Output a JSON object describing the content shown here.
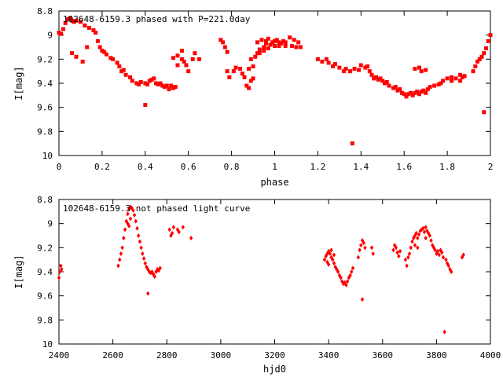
{
  "chart_data": [
    {
      "type": "scatter",
      "title": "102648-6159.3 phased with P=221.0day",
      "xlabel": "phase",
      "ylabel": "I[mag]",
      "xlim": [
        0,
        2
      ],
      "ylim": [
        8.8,
        10
      ],
      "y_inverted": true,
      "xticks": [
        0,
        0.2,
        0.4,
        0.6,
        0.8,
        1,
        1.2,
        1.4,
        1.6,
        1.8,
        2
      ],
      "xtick_labels": [
        "0",
        "0.2",
        "0.4",
        "0.6",
        "0.8",
        "1",
        "1.2",
        "1.4",
        "1.6",
        "1.8",
        "2"
      ],
      "yticks": [
        8.8,
        9,
        9.2,
        9.4,
        9.6,
        9.8,
        10
      ],
      "ytick_labels": [
        "8.8",
        "9",
        "9.2",
        "9.4",
        "9.6",
        "9.8",
        "10"
      ],
      "marker_color": "#ff0000",
      "marker": "filled-square",
      "points": [
        [
          0.0,
          8.98
        ],
        [
          0.01,
          8.99
        ],
        [
          0.02,
          8.95
        ],
        [
          0.03,
          8.9
        ],
        [
          0.04,
          8.87
        ],
        [
          0.05,
          8.86
        ],
        [
          0.06,
          8.88
        ],
        [
          0.07,
          8.89
        ],
        [
          0.08,
          8.88
        ],
        [
          0.1,
          8.89
        ],
        [
          0.12,
          8.92
        ],
        [
          0.14,
          8.94
        ],
        [
          0.16,
          8.96
        ],
        [
          0.17,
          8.98
        ],
        [
          0.06,
          9.15
        ],
        [
          0.08,
          9.18
        ],
        [
          0.11,
          9.22
        ],
        [
          0.13,
          9.1
        ],
        [
          0.18,
          9.05
        ],
        [
          0.19,
          9.1
        ],
        [
          0.2,
          9.13
        ],
        [
          0.21,
          9.14
        ],
        [
          0.22,
          9.16
        ],
        [
          0.24,
          9.19
        ],
        [
          0.25,
          9.2
        ],
        [
          0.27,
          9.23
        ],
        [
          0.28,
          9.26
        ],
        [
          0.29,
          9.3
        ],
        [
          0.3,
          9.29
        ],
        [
          0.31,
          9.33
        ],
        [
          0.33,
          9.35
        ],
        [
          0.34,
          9.38
        ],
        [
          0.36,
          9.4
        ],
        [
          0.37,
          9.41
        ],
        [
          0.38,
          9.39
        ],
        [
          0.4,
          9.4
        ],
        [
          0.41,
          9.41
        ],
        [
          0.42,
          9.38
        ],
        [
          0.43,
          9.37
        ],
        [
          0.4,
          9.58
        ],
        [
          0.44,
          9.36
        ],
        [
          0.45,
          9.4
        ],
        [
          0.46,
          9.41
        ],
        [
          0.47,
          9.4
        ],
        [
          0.48,
          9.42
        ],
        [
          0.49,
          9.43
        ],
        [
          0.5,
          9.42
        ],
        [
          0.51,
          9.45
        ],
        [
          0.52,
          9.42
        ],
        [
          0.53,
          9.44
        ],
        [
          0.54,
          9.43
        ],
        [
          0.53,
          9.19
        ],
        [
          0.55,
          9.17
        ],
        [
          0.57,
          9.2
        ],
        [
          0.58,
          9.22
        ],
        [
          0.59,
          9.25
        ],
        [
          0.6,
          9.3
        ],
        [
          0.62,
          9.2
        ],
        [
          0.63,
          9.15
        ],
        [
          0.65,
          9.2
        ],
        [
          0.57,
          9.13
        ],
        [
          0.55,
          9.25
        ],
        [
          0.75,
          9.04
        ],
        [
          0.76,
          9.06
        ],
        [
          0.77,
          9.1
        ],
        [
          0.78,
          9.14
        ],
        [
          0.78,
          9.3
        ],
        [
          0.79,
          9.35
        ],
        [
          0.81,
          9.3
        ],
        [
          0.82,
          9.27
        ],
        [
          0.84,
          9.28
        ],
        [
          0.85,
          9.32
        ],
        [
          0.86,
          9.35
        ],
        [
          0.87,
          9.42
        ],
        [
          0.88,
          9.44
        ],
        [
          0.89,
          9.38
        ],
        [
          0.9,
          9.26
        ],
        [
          0.9,
          9.36
        ],
        [
          0.88,
          9.28
        ],
        [
          0.89,
          9.2
        ],
        [
          0.91,
          9.18
        ],
        [
          0.92,
          9.15
        ],
        [
          0.93,
          9.12
        ],
        [
          0.95,
          9.1
        ],
        [
          0.96,
          9.07
        ],
        [
          0.98,
          9.08
        ],
        [
          0.99,
          9.06
        ],
        [
          1.0,
          9.05
        ],
        [
          1.01,
          9.04
        ],
        [
          1.02,
          9.06
        ],
        [
          1.03,
          9.07
        ],
        [
          1.04,
          9.05
        ],
        [
          1.05,
          9.06
        ],
        [
          1.07,
          9.02
        ],
        [
          1.09,
          9.04
        ],
        [
          1.11,
          9.06
        ],
        [
          0.92,
          9.06
        ],
        [
          0.94,
          9.04
        ],
        [
          0.96,
          9.05
        ],
        [
          0.97,
          9.03
        ],
        [
          1.0,
          9.09
        ],
        [
          1.02,
          9.09
        ],
        [
          1.05,
          9.09
        ],
        [
          1.08,
          9.09
        ],
        [
          1.1,
          9.1
        ],
        [
          1.12,
          9.1
        ],
        [
          0.97,
          9.11
        ],
        [
          0.95,
          9.13
        ],
        [
          0.93,
          9.15
        ],
        [
          1.2,
          9.2
        ],
        [
          1.22,
          9.22
        ],
        [
          1.24,
          9.2
        ],
        [
          1.25,
          9.23
        ],
        [
          1.27,
          9.26
        ],
        [
          1.28,
          9.24
        ],
        [
          1.3,
          9.27
        ],
        [
          1.32,
          9.3
        ],
        [
          1.33,
          9.28
        ],
        [
          1.35,
          9.3
        ],
        [
          1.37,
          9.28
        ],
        [
          1.39,
          9.29
        ],
        [
          1.36,
          9.9
        ],
        [
          1.4,
          9.25
        ],
        [
          1.42,
          9.27
        ],
        [
          1.43,
          9.26
        ],
        [
          1.44,
          9.3
        ],
        [
          1.45,
          9.33
        ],
        [
          1.46,
          9.36
        ],
        [
          1.47,
          9.35
        ],
        [
          1.48,
          9.37
        ],
        [
          1.49,
          9.36
        ],
        [
          1.5,
          9.38
        ],
        [
          1.51,
          9.4
        ],
        [
          1.52,
          9.39
        ],
        [
          1.53,
          9.42
        ],
        [
          1.55,
          9.44
        ],
        [
          1.56,
          9.43
        ],
        [
          1.57,
          9.46
        ],
        [
          1.58,
          9.45
        ],
        [
          1.59,
          9.48
        ],
        [
          1.6,
          9.49
        ],
        [
          1.61,
          9.51
        ],
        [
          1.62,
          9.49
        ],
        [
          1.63,
          9.48
        ],
        [
          1.64,
          9.5
        ],
        [
          1.65,
          9.48
        ],
        [
          1.66,
          9.47
        ],
        [
          1.67,
          9.49
        ],
        [
          1.68,
          9.47
        ],
        [
          1.69,
          9.46
        ],
        [
          1.7,
          9.48
        ],
        [
          1.71,
          9.45
        ],
        [
          1.65,
          9.28
        ],
        [
          1.67,
          9.27
        ],
        [
          1.68,
          9.3
        ],
        [
          1.7,
          9.29
        ],
        [
          1.72,
          9.43
        ],
        [
          1.74,
          9.42
        ],
        [
          1.76,
          9.41
        ],
        [
          1.77,
          9.4
        ],
        [
          1.78,
          9.38
        ],
        [
          1.8,
          9.36
        ],
        [
          1.82,
          9.35
        ],
        [
          1.84,
          9.36
        ],
        [
          1.86,
          9.33
        ],
        [
          1.87,
          9.35
        ],
        [
          1.88,
          9.34
        ],
        [
          1.82,
          9.38
        ],
        [
          1.86,
          9.38
        ],
        [
          1.92,
          9.3
        ],
        [
          1.93,
          9.26
        ],
        [
          1.94,
          9.22
        ],
        [
          1.95,
          9.2
        ],
        [
          1.96,
          9.18
        ],
        [
          1.97,
          9.15
        ],
        [
          1.98,
          9.11
        ],
        [
          1.99,
          9.05
        ],
        [
          2.0,
          9.0
        ],
        [
          1.97,
          9.64
        ]
      ]
    },
    {
      "type": "scatter",
      "title": "102648-6159.3 not phased light curve",
      "xlabel": "hjd0",
      "ylabel": "I[mag]",
      "xlim": [
        2400,
        4000
      ],
      "ylim": [
        8.8,
        10
      ],
      "y_inverted": true,
      "xticks": [
        2400,
        2600,
        2800,
        3000,
        3200,
        3400,
        3600,
        3800,
        4000
      ],
      "xtick_labels": [
        "2400",
        "2600",
        "2800",
        "3000",
        "3200",
        "3400",
        "3600",
        "3800",
        "4000"
      ],
      "yticks": [
        8.8,
        9,
        9.2,
        9.4,
        9.6,
        9.8,
        10
      ],
      "ytick_labels": [
        "8.8",
        "9",
        "9.2",
        "9.4",
        "9.6",
        "9.8",
        "10"
      ],
      "marker_color": "#ff0000",
      "marker": "filled-diamond",
      "points": [
        [
          2400,
          9.45
        ],
        [
          2403,
          9.4
        ],
        [
          2407,
          9.35
        ],
        [
          2410,
          9.38
        ],
        [
          2620,
          9.35
        ],
        [
          2625,
          9.3
        ],
        [
          2630,
          9.25
        ],
        [
          2635,
          9.2
        ],
        [
          2640,
          9.12
        ],
        [
          2645,
          9.05
        ],
        [
          2650,
          8.98
        ],
        [
          2655,
          8.92
        ],
        [
          2660,
          8.88
        ],
        [
          2665,
          8.86
        ],
        [
          2670,
          8.87
        ],
        [
          2675,
          8.89
        ],
        [
          2680,
          8.93
        ],
        [
          2685,
          8.98
        ],
        [
          2690,
          9.04
        ],
        [
          2695,
          9.1
        ],
        [
          2700,
          9.15
        ],
        [
          2705,
          9.2
        ],
        [
          2710,
          9.25
        ],
        [
          2715,
          9.29
        ],
        [
          2720,
          9.33
        ],
        [
          2725,
          9.36
        ],
        [
          2730,
          9.38
        ],
        [
          2735,
          9.4
        ],
        [
          2740,
          9.41
        ],
        [
          2745,
          9.4
        ],
        [
          2750,
          9.42
        ],
        [
          2755,
          9.44
        ],
        [
          2655,
          9.0
        ],
        [
          2660,
          9.02
        ],
        [
          2665,
          8.96
        ],
        [
          2730,
          9.58
        ],
        [
          2760,
          9.4
        ],
        [
          2765,
          9.38
        ],
        [
          2770,
          9.39
        ],
        [
          2775,
          9.37
        ],
        [
          2810,
          9.05
        ],
        [
          2815,
          9.1
        ],
        [
          2820,
          9.08
        ],
        [
          2825,
          9.03
        ],
        [
          2840,
          9.05
        ],
        [
          2845,
          9.07
        ],
        [
          2860,
          9.03
        ],
        [
          2890,
          9.12
        ],
        [
          3385,
          9.3
        ],
        [
          3390,
          9.27
        ],
        [
          3395,
          9.25
        ],
        [
          3400,
          9.23
        ],
        [
          3405,
          9.25
        ],
        [
          3410,
          9.28
        ],
        [
          3415,
          9.3
        ],
        [
          3420,
          9.33
        ],
        [
          3425,
          9.36
        ],
        [
          3430,
          9.38
        ],
        [
          3435,
          9.4
        ],
        [
          3440,
          9.43
        ],
        [
          3445,
          9.45
        ],
        [
          3450,
          9.48
        ],
        [
          3455,
          9.5
        ],
        [
          3460,
          9.49
        ],
        [
          3465,
          9.51
        ],
        [
          3470,
          9.48
        ],
        [
          3475,
          9.45
        ],
        [
          3480,
          9.43
        ],
        [
          3485,
          9.4
        ],
        [
          3490,
          9.37
        ],
        [
          3395,
          9.32
        ],
        [
          3400,
          9.34
        ],
        [
          3410,
          9.22
        ],
        [
          3420,
          9.26
        ],
        [
          3510,
          9.28
        ],
        [
          3515,
          9.22
        ],
        [
          3520,
          9.18
        ],
        [
          3525,
          9.14
        ],
        [
          3530,
          9.16
        ],
        [
          3535,
          9.2
        ],
        [
          3525,
          9.63
        ],
        [
          3560,
          9.2
        ],
        [
          3565,
          9.25
        ],
        [
          3640,
          9.22
        ],
        [
          3645,
          9.18
        ],
        [
          3650,
          9.2
        ],
        [
          3655,
          9.24
        ],
        [
          3660,
          9.27
        ],
        [
          3665,
          9.23
        ],
        [
          3685,
          9.3
        ],
        [
          3690,
          9.35
        ],
        [
          3695,
          9.28
        ],
        [
          3700,
          9.25
        ],
        [
          3705,
          9.2
        ],
        [
          3710,
          9.15
        ],
        [
          3715,
          9.12
        ],
        [
          3720,
          9.1
        ],
        [
          3725,
          9.08
        ],
        [
          3730,
          9.12
        ],
        [
          3735,
          9.09
        ],
        [
          3740,
          9.06
        ],
        [
          3745,
          9.05
        ],
        [
          3750,
          9.04
        ],
        [
          3755,
          9.07
        ],
        [
          3760,
          9.03
        ],
        [
          3765,
          9.06
        ],
        [
          3770,
          9.08
        ],
        [
          3775,
          9.1
        ],
        [
          3780,
          9.14
        ],
        [
          3785,
          9.18
        ],
        [
          3790,
          9.2
        ],
        [
          3795,
          9.22
        ],
        [
          3800,
          9.25
        ],
        [
          3805,
          9.23
        ],
        [
          3810,
          9.26
        ],
        [
          3815,
          9.22
        ],
        [
          3820,
          9.24
        ],
        [
          3825,
          9.28
        ],
        [
          3720,
          9.18
        ],
        [
          3730,
          9.2
        ],
        [
          3760,
          9.12
        ],
        [
          3835,
          9.3
        ],
        [
          3840,
          9.33
        ],
        [
          3845,
          9.35
        ],
        [
          3850,
          9.38
        ],
        [
          3855,
          9.4
        ],
        [
          3830,
          9.9
        ],
        [
          3895,
          9.28
        ],
        [
          3900,
          9.26
        ]
      ]
    }
  ]
}
